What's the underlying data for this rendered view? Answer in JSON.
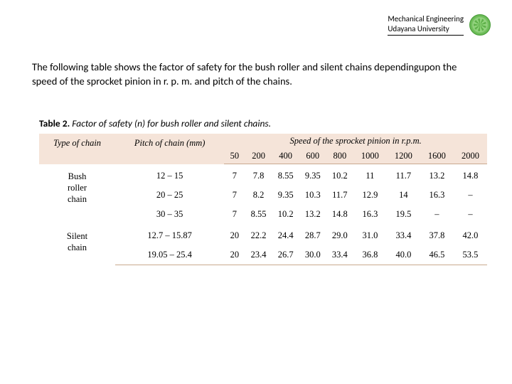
{
  "header": {
    "line1": "Mechanical Engineering",
    "line2": "Udayana University"
  },
  "intro": "The following table shows the factor of safety for the bush roller and silent chains dependingupon the speed of the sprocket pinion in r. p. m. and pitch of the chains.",
  "caption": {
    "label": "Table 2.",
    "text": " Factor of safety (n) for bush roller and silent chains."
  },
  "table": {
    "header_bg": "#f5e4d9",
    "border_color": "#c9a98f",
    "col_type": "Type of chain",
    "col_pitch": "Pitch of chain (mm)",
    "col_speed": "Speed of the sprocket pinion in r.p.m.",
    "speeds": [
      "50",
      "200",
      "400",
      "600",
      "800",
      "1000",
      "1200",
      "1600",
      "2000"
    ],
    "groups": [
      {
        "type_lines": [
          "Bush",
          "roller",
          "chain"
        ],
        "rows": [
          {
            "pitch": "12 – 15",
            "vals": [
              "7",
              "7.8",
              "8.55",
              "9.35",
              "10.2",
              "11",
              "11.7",
              "13.2",
              "14.8"
            ]
          },
          {
            "pitch": "20 – 25",
            "vals": [
              "7",
              "8.2",
              "9.35",
              "10.3",
              "11.7",
              "12.9",
              "14",
              "16.3",
              "–"
            ]
          },
          {
            "pitch": "30 – 35",
            "vals": [
              "7",
              "8.55",
              "10.2",
              "13.2",
              "14.8",
              "16.3",
              "19.5",
              "–",
              "–"
            ]
          }
        ]
      },
      {
        "type_lines": [
          "Silent",
          "chain"
        ],
        "rows": [
          {
            "pitch": "12.7 – 15.87",
            "vals": [
              "20",
              "22.2",
              "24.4",
              "28.7",
              "29.0",
              "31.0",
              "33.4",
              "37.8",
              "42.0"
            ]
          },
          {
            "pitch": "19.05 – 25.4",
            "vals": [
              "20",
              "23.4",
              "26.7",
              "30.0",
              "33.4",
              "36.8",
              "40.0",
              "46.5",
              "53.5"
            ]
          }
        ]
      }
    ]
  }
}
